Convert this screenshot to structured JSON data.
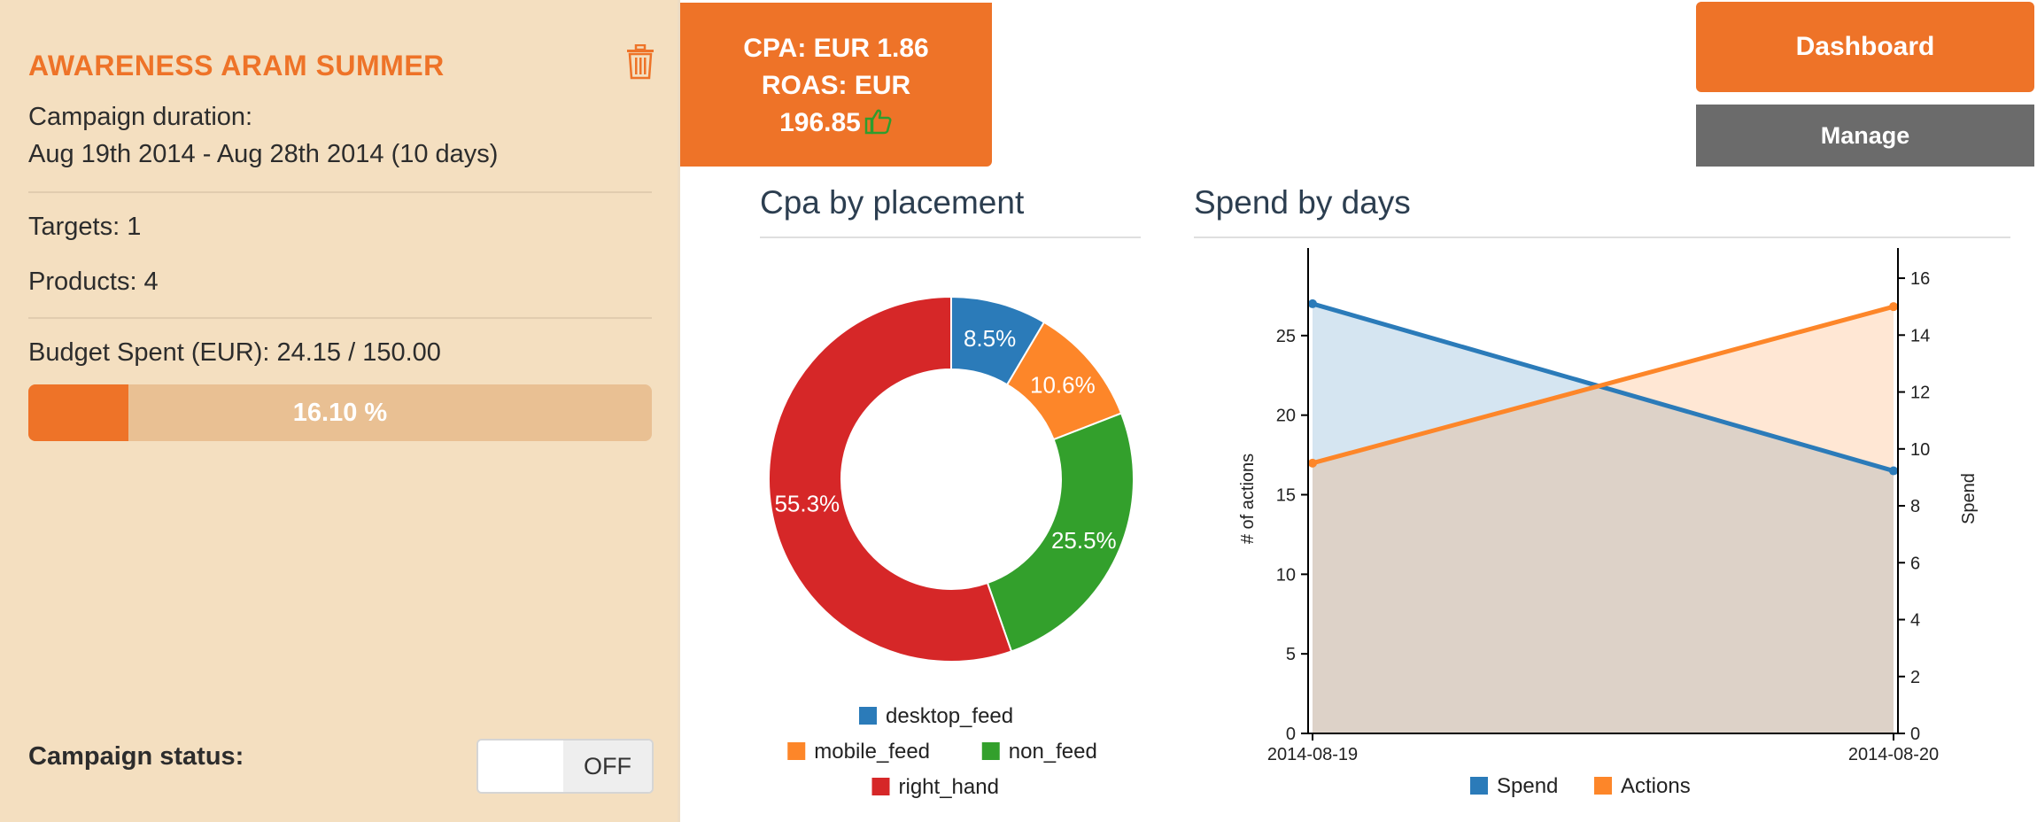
{
  "campaign": {
    "title": "AWARENESS ARAM SUMMER",
    "duration_label": "Campaign duration:",
    "duration_value": "Aug 19th 2014 - Aug 28th 2014 (10 days)",
    "targets": "Targets: 1",
    "products": "Products: 4",
    "budget": "Budget Spent (EUR): 24.15 / 150.00",
    "progress_text": "16.10 %",
    "progress_fraction": 0.161,
    "status_label": "Campaign status:",
    "toggle_text": "OFF"
  },
  "kpi": {
    "line1": "CPA: EUR 1.86",
    "line2": "ROAS: EUR",
    "line3": "196.85"
  },
  "buttons": {
    "dashboard": "Dashboard",
    "manage": "Manage"
  },
  "sections": {
    "cpa_title": "Cpa by placement",
    "spend_title": "Spend by days"
  },
  "colors": {
    "accent": "#ee7328",
    "panel_bg": "#f4dfc0",
    "manage_bg": "#6b6b6b",
    "thumb": "#2e9d2e"
  },
  "icons": {
    "trash": "trash-icon",
    "thumb": "thumbs-up-icon"
  },
  "chart_data": [
    {
      "type": "pie",
      "title": "Cpa by placement",
      "donut": true,
      "categories": [
        "desktop_feed",
        "mobile_feed",
        "non_feed",
        "right_hand"
      ],
      "values": [
        8.5,
        10.6,
        25.5,
        55.3
      ],
      "labels": [
        "8.5%",
        "10.6%",
        "25.5%",
        "55.3%"
      ],
      "colors": [
        "#2b7bb9",
        "#fd8629",
        "#33a02c",
        "#d62728"
      ],
      "legend": "bottom"
    },
    {
      "type": "area",
      "title": "Spend by days",
      "x": [
        "2014-08-19",
        "2014-08-20"
      ],
      "series": [
        {
          "name": "Spend",
          "axis": "left",
          "values": [
            27,
            16.5
          ],
          "color": "#2b7bb9"
        },
        {
          "name": "Actions",
          "axis": "right",
          "values": [
            9.5,
            15
          ],
          "color": "#fd8629"
        }
      ],
      "ylabel_left": "# of actions",
      "ylabel_right": "Spend",
      "ylim_left": [
        0,
        29.5
      ],
      "ylim_right": [
        0,
        16.5
      ],
      "yticks_left": [
        "0",
        "5",
        "10",
        "15",
        "20",
        "25"
      ],
      "yticks_right": [
        "0",
        "2",
        "4",
        "6",
        "8",
        "10",
        "12",
        "14",
        "16"
      ],
      "legend": "bottom"
    }
  ]
}
